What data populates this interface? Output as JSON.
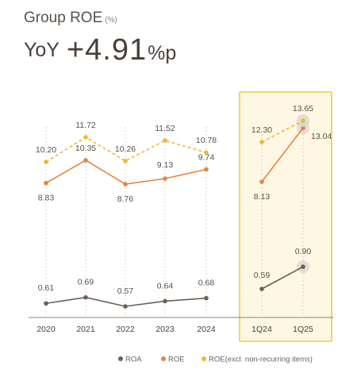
{
  "header": {
    "title": "Group ROE",
    "unit": "(%)",
    "yoy_label": "YoY",
    "yoy_value": "+4.91",
    "yoy_suffix": "%p"
  },
  "colors": {
    "roa": "#6b5f57",
    "roe": "#e8833a",
    "roe_excl": "#f2b632",
    "highlight_border": "#f3c74a",
    "highlight_fill": "#fdf7e4",
    "grid": "#cfc9c3"
  },
  "chart_data": [
    {
      "type": "line",
      "categories": [
        "2020",
        "2021",
        "2022",
        "2023",
        "2024"
      ],
      "series": [
        {
          "name": "ROA",
          "values": [
            0.61,
            0.69,
            0.57,
            0.64,
            0.68
          ],
          "labels": [
            "0.61",
            "0.69",
            "0.57",
            "0.64",
            "0.68"
          ],
          "style": "solid"
        },
        {
          "name": "ROE",
          "values": [
            8.83,
            10.35,
            8.76,
            9.13,
            9.74
          ],
          "labels": [
            "8.83",
            "10.35",
            "8.76",
            "9.13",
            "9.74"
          ],
          "style": "solid"
        },
        {
          "name": "ROE(excl. non-recurring items)",
          "values": [
            10.2,
            11.72,
            10.26,
            11.52,
            10.78
          ],
          "labels": [
            "10.20",
            "11.72",
            "10.26",
            "11.52",
            "10.78"
          ],
          "style": "dashed"
        }
      ]
    },
    {
      "type": "line",
      "categories": [
        "1Q24",
        "1Q25"
      ],
      "highlighted": true,
      "series": [
        {
          "name": "ROA",
          "values": [
            0.59,
            0.9
          ],
          "labels": [
            "0.59",
            "0.90"
          ],
          "style": "solid"
        },
        {
          "name": "ROE",
          "values": [
            8.13,
            13.04
          ],
          "labels": [
            "8.13",
            "13.04"
          ],
          "style": "solid"
        },
        {
          "name": "ROE(excl. non-recurring items)",
          "values": [
            12.3,
            13.65
          ],
          "labels": [
            "12.30",
            "13.65"
          ],
          "style": "dashed"
        }
      ]
    }
  ]
}
